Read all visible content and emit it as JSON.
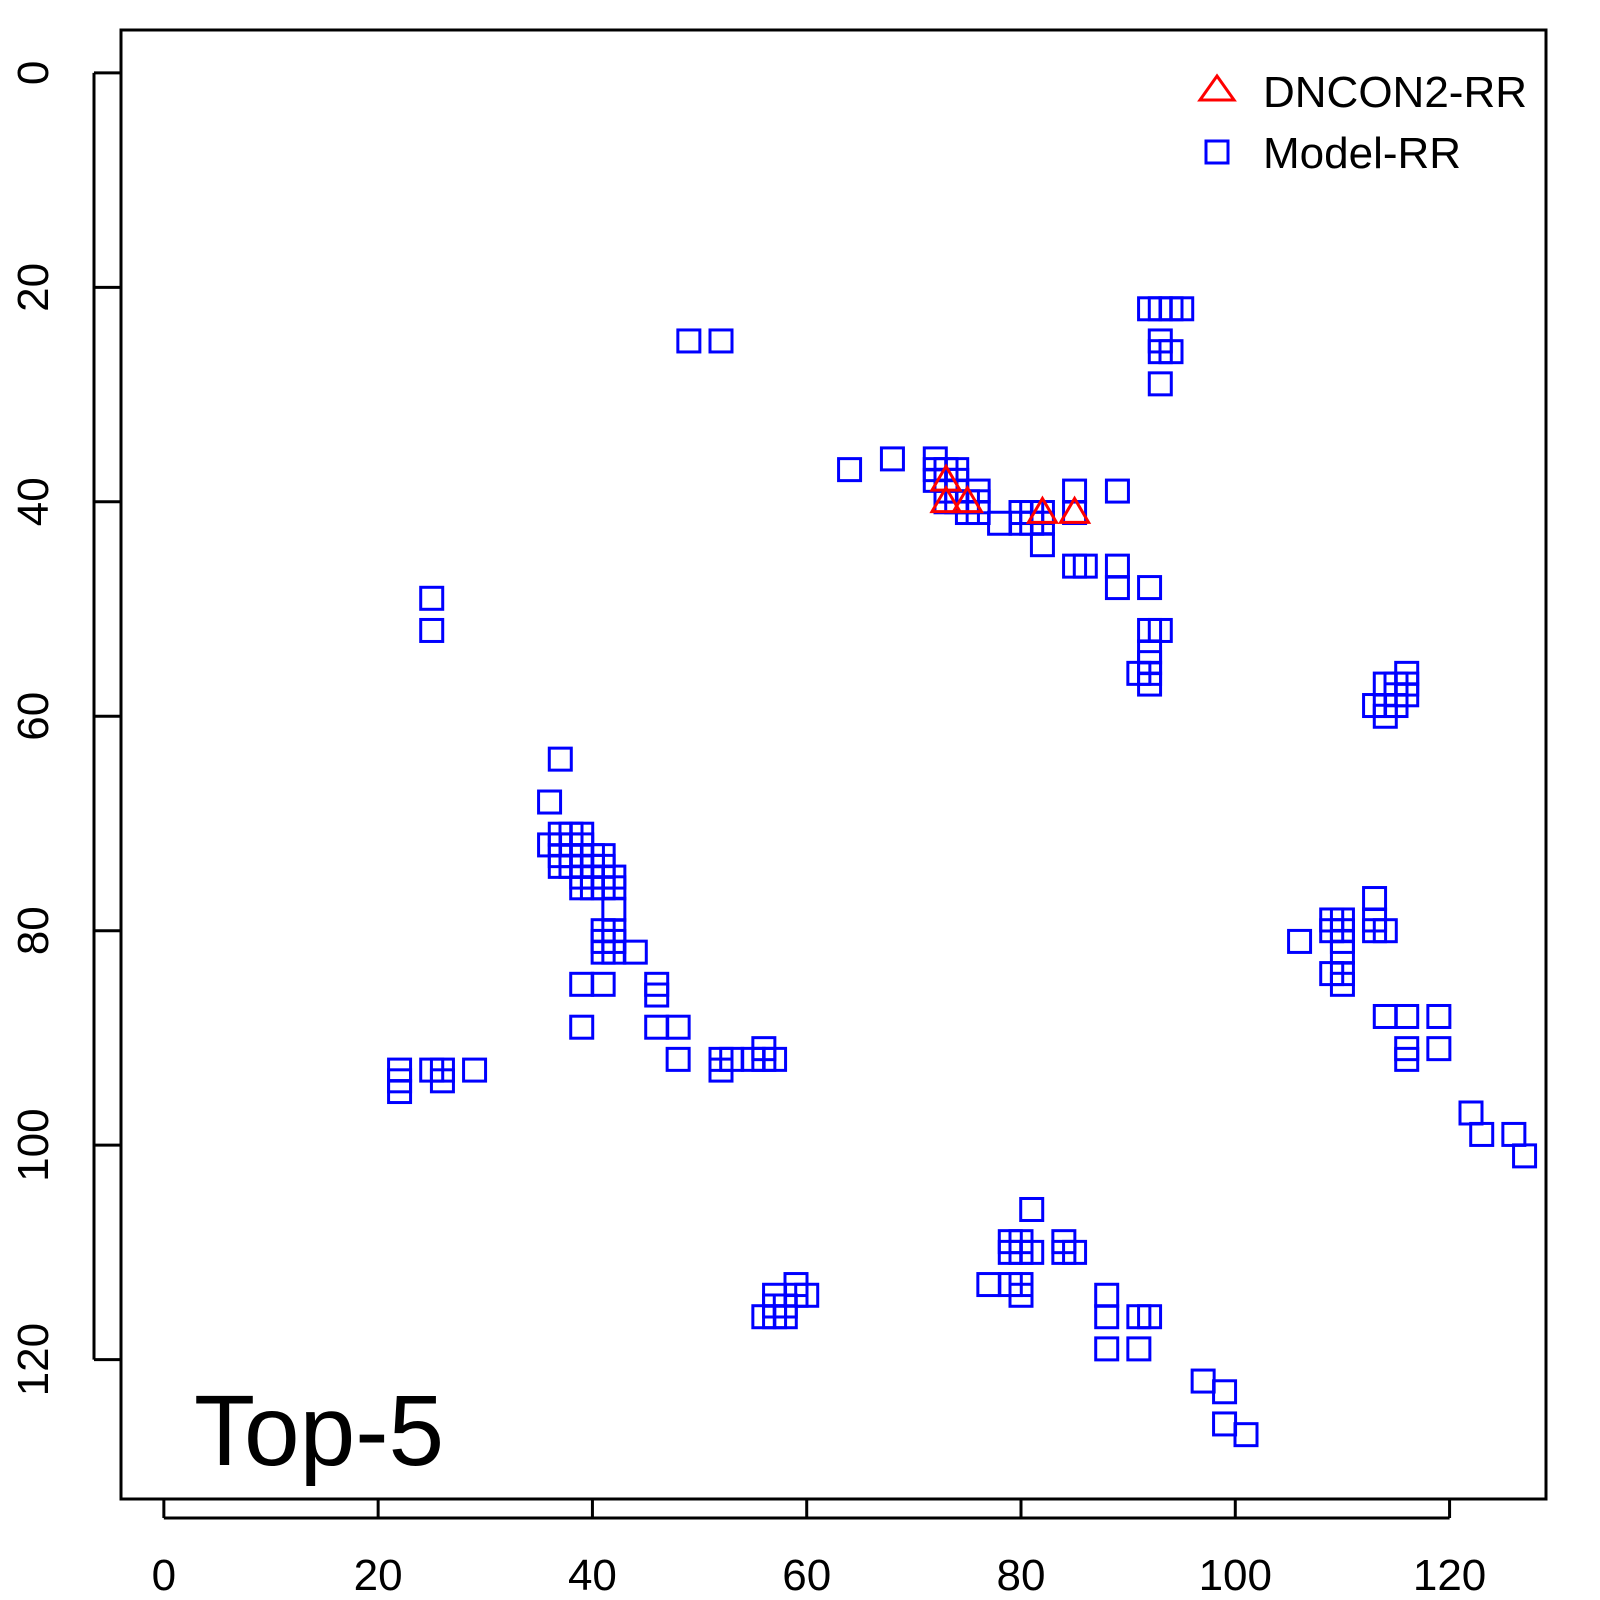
{
  "chart_data": {
    "type": "scatter",
    "title": "",
    "xlabel": "",
    "ylabel": "",
    "annotation": "Top-5",
    "xlim": [
      -4,
      129
    ],
    "ylim": [
      -4,
      133
    ],
    "y_inverted": true,
    "x_ticks": [
      0,
      20,
      40,
      60,
      80,
      100,
      120
    ],
    "y_ticks": [
      0,
      20,
      40,
      60,
      80,
      100,
      120
    ],
    "legend_position": "top-right",
    "series": [
      {
        "name": "Model-RR",
        "marker": "square",
        "color": "#0000ff",
        "points": [
          [
            49,
            25
          ],
          [
            52,
            25
          ],
          [
            92,
            22
          ],
          [
            93,
            22
          ],
          [
            94,
            22
          ],
          [
            95,
            22
          ],
          [
            93,
            25
          ],
          [
            93,
            26
          ],
          [
            94,
            26
          ],
          [
            93,
            29
          ],
          [
            25,
            49
          ],
          [
            25,
            52
          ],
          [
            37,
            64
          ],
          [
            36,
            68
          ],
          [
            36,
            72
          ],
          [
            37,
            71
          ],
          [
            37,
            72
          ],
          [
            37,
            73
          ],
          [
            37,
            74
          ],
          [
            38,
            71
          ],
          [
            38,
            72
          ],
          [
            38,
            73
          ],
          [
            38,
            74
          ],
          [
            39,
            71
          ],
          [
            39,
            72
          ],
          [
            39,
            73
          ],
          [
            39,
            74
          ],
          [
            39,
            75
          ],
          [
            39,
            76
          ],
          [
            40,
            73
          ],
          [
            40,
            74
          ],
          [
            40,
            75
          ],
          [
            40,
            76
          ],
          [
            41,
            73
          ],
          [
            41,
            74
          ],
          [
            41,
            75
          ],
          [
            41,
            76
          ],
          [
            42,
            75
          ],
          [
            42,
            76
          ],
          [
            42,
            78
          ],
          [
            41,
            80
          ],
          [
            41,
            81
          ],
          [
            41,
            82
          ],
          [
            42,
            80
          ],
          [
            42,
            81
          ],
          [
            42,
            82
          ],
          [
            44,
            82
          ],
          [
            39,
            85
          ],
          [
            41,
            85
          ],
          [
            39,
            89
          ],
          [
            46,
            85
          ],
          [
            46,
            86
          ],
          [
            46,
            89
          ],
          [
            48,
            89
          ],
          [
            48,
            92
          ],
          [
            52,
            92
          ],
          [
            52,
            93
          ],
          [
            53,
            92
          ],
          [
            55,
            92
          ],
          [
            56,
            91
          ],
          [
            56,
            92
          ],
          [
            57,
            92
          ],
          [
            22,
            93
          ],
          [
            22,
            94
          ],
          [
            22,
            95
          ],
          [
            25,
            93
          ],
          [
            26,
            93
          ],
          [
            26,
            94
          ],
          [
            29,
            93
          ],
          [
            64,
            37
          ],
          [
            68,
            36
          ],
          [
            72,
            36
          ],
          [
            72,
            37
          ],
          [
            72,
            38
          ],
          [
            73,
            37
          ],
          [
            73,
            38
          ],
          [
            73,
            39
          ],
          [
            73,
            40
          ],
          [
            74,
            37
          ],
          [
            74,
            38
          ],
          [
            74,
            39
          ],
          [
            74,
            40
          ],
          [
            75,
            40
          ],
          [
            75,
            41
          ],
          [
            76,
            39
          ],
          [
            76,
            40
          ],
          [
            76,
            41
          ],
          [
            78,
            42
          ],
          [
            80,
            41
          ],
          [
            80,
            42
          ],
          [
            81,
            41
          ],
          [
            81,
            42
          ],
          [
            82,
            41
          ],
          [
            82,
            42
          ],
          [
            82,
            44
          ],
          [
            85,
            39
          ],
          [
            85,
            41
          ],
          [
            85,
            46
          ],
          [
            86,
            46
          ],
          [
            89,
            39
          ],
          [
            89,
            46
          ],
          [
            89,
            48
          ],
          [
            92,
            48
          ],
          [
            92,
            52
          ],
          [
            93,
            52
          ],
          [
            92,
            54
          ],
          [
            92,
            55
          ],
          [
            92,
            56
          ],
          [
            92,
            57
          ],
          [
            91,
            56
          ],
          [
            114,
            57
          ],
          [
            115,
            57
          ],
          [
            116,
            56
          ],
          [
            116,
            57
          ],
          [
            116,
            58
          ],
          [
            115,
            58
          ],
          [
            115,
            59
          ],
          [
            114,
            59
          ],
          [
            113,
            59
          ],
          [
            114,
            60
          ],
          [
            113,
            77
          ],
          [
            113,
            79
          ],
          [
            113,
            80
          ],
          [
            114,
            80
          ],
          [
            106,
            81
          ],
          [
            109,
            79
          ],
          [
            109,
            80
          ],
          [
            110,
            79
          ],
          [
            110,
            80
          ],
          [
            110,
            81
          ],
          [
            110,
            82
          ],
          [
            109,
            84
          ],
          [
            110,
            84
          ],
          [
            110,
            85
          ],
          [
            114,
            88
          ],
          [
            116,
            88
          ],
          [
            119,
            88
          ],
          [
            116,
            91
          ],
          [
            116,
            92
          ],
          [
            119,
            91
          ],
          [
            122,
            97
          ],
          [
            123,
            99
          ],
          [
            126,
            99
          ],
          [
            127,
            101
          ],
          [
            81,
            106
          ],
          [
            79,
            109
          ],
          [
            79,
            110
          ],
          [
            80,
            109
          ],
          [
            80,
            110
          ],
          [
            81,
            110
          ],
          [
            84,
            109
          ],
          [
            84,
            110
          ],
          [
            85,
            110
          ],
          [
            77,
            113
          ],
          [
            79,
            113
          ],
          [
            80,
            113
          ],
          [
            80,
            114
          ],
          [
            57,
            114
          ],
          [
            57,
            115
          ],
          [
            57,
            116
          ],
          [
            56,
            116
          ],
          [
            58,
            115
          ],
          [
            58,
            116
          ],
          [
            59,
            113
          ],
          [
            59,
            114
          ],
          [
            60,
            114
          ],
          [
            88,
            114
          ],
          [
            88,
            116
          ],
          [
            91,
            116
          ],
          [
            92,
            116
          ],
          [
            88,
            119
          ],
          [
            91,
            119
          ],
          [
            97,
            122
          ],
          [
            99,
            123
          ],
          [
            99,
            126
          ],
          [
            101,
            127
          ]
        ]
      },
      {
        "name": "DNCON2-RR",
        "marker": "triangle",
        "color": "#ff0000",
        "points": [
          [
            73,
            38
          ],
          [
            73,
            40
          ],
          [
            75,
            40
          ],
          [
            82,
            41
          ],
          [
            85,
            41
          ]
        ]
      }
    ]
  }
}
